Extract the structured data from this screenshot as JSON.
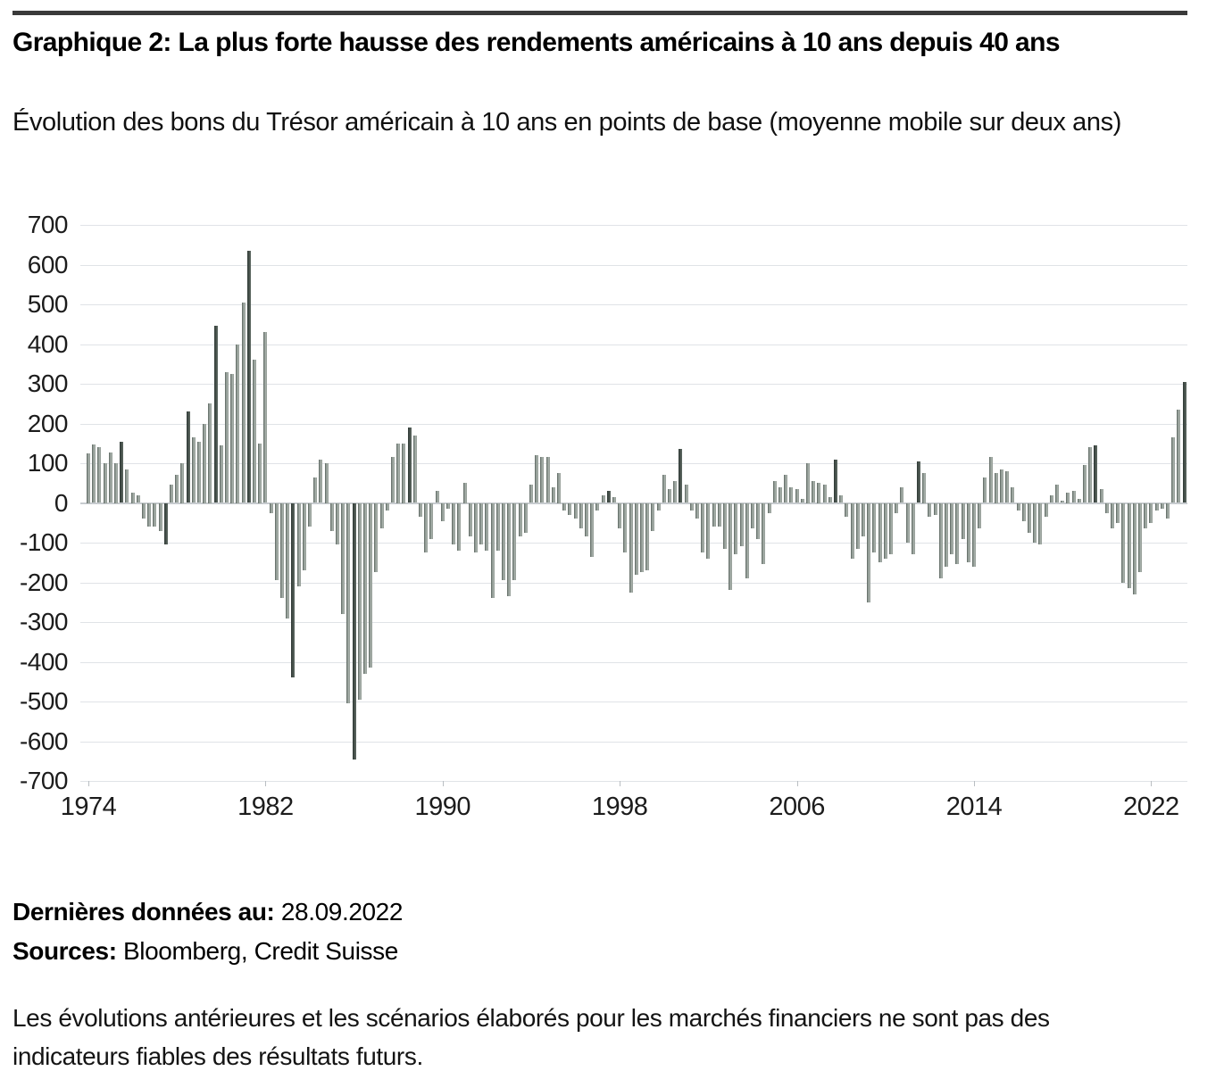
{
  "header": {
    "title": "Graphique 2: La plus forte hausse des rendements américains à 10 ans depuis 40 ans",
    "subtitle": "Évolution des bons du Trésor américain à 10 ans en points de base (moyenne mobile sur deux ans)"
  },
  "chart_data": {
    "type": "bar",
    "title": "Graphique 2: La plus forte hausse des rendements américains à 10 ans depuis 40 ans",
    "subtitle": "Évolution des bons du Trésor américain à 10 ans en points de base (moyenne mobile sur deux ans)",
    "unit": "points de base",
    "frequency": "quarterly",
    "x_start_year": 1974,
    "ylim": [
      -700,
      700
    ],
    "ytick_step": 100,
    "grid": true,
    "yticks": [
      700,
      600,
      500,
      400,
      300,
      200,
      100,
      0,
      -100,
      -200,
      -300,
      -400,
      -500,
      -600,
      -700
    ],
    "xticks": [
      1974,
      1982,
      1990,
      1998,
      2006,
      2014,
      2022
    ],
    "values": [
      125,
      148,
      140,
      100,
      127,
      100,
      155,
      85,
      25,
      20,
      -40,
      -60,
      -60,
      -70,
      -105,
      45,
      70,
      100,
      230,
      165,
      155,
      200,
      250,
      445,
      145,
      330,
      325,
      400,
      505,
      635,
      360,
      150,
      430,
      -25,
      -195,
      -240,
      -290,
      -440,
      -210,
      -170,
      -60,
      65,
      110,
      100,
      -70,
      -105,
      -280,
      -505,
      -645,
      -495,
      -430,
      -415,
      -175,
      -65,
      -20,
      115,
      150,
      150,
      190,
      170,
      -35,
      -125,
      -90,
      30,
      -45,
      -15,
      -105,
      -120,
      50,
      -85,
      -125,
      -105,
      -120,
      -240,
      -120,
      -195,
      -235,
      -195,
      -85,
      -75,
      45,
      120,
      115,
      115,
      40,
      75,
      -20,
      -30,
      -40,
      -65,
      -85,
      -135,
      -20,
      20,
      30,
      15,
      -65,
      -125,
      -225,
      -180,
      -175,
      -170,
      -70,
      -20,
      70,
      35,
      55,
      135,
      45,
      -20,
      -40,
      -125,
      -140,
      -60,
      -60,
      -115,
      -220,
      -130,
      -110,
      -190,
      -65,
      -90,
      -155,
      -25,
      55,
      40,
      70,
      40,
      35,
      10,
      100,
      55,
      50,
      45,
      15,
      110,
      20,
      -35,
      -140,
      -115,
      -85,
      -250,
      -125,
      -150,
      -140,
      -130,
      -25,
      40,
      -100,
      -130,
      105,
      75,
      -35,
      -30,
      -190,
      -160,
      -130,
      -155,
      -90,
      -150,
      -160,
      -65,
      65,
      115,
      75,
      85,
      80,
      40,
      -20,
      -45,
      -75,
      -100,
      -105,
      -35,
      20,
      45,
      5,
      25,
      30,
      10,
      95,
      140,
      145,
      35,
      -25,
      -65,
      -50,
      -200,
      -215,
      -230,
      -175,
      -65,
      -50,
      -20,
      -15,
      -40,
      165,
      235,
      305
    ],
    "dark_indices": [
      6,
      14,
      18,
      23,
      29,
      37,
      48,
      58,
      94,
      107,
      135,
      150,
      182,
      198
    ],
    "colors": {
      "bar_light_edge": "#5a655f",
      "bar_light_body": "#a7b0aa",
      "bar_light_end": "#949d97",
      "bar_dark_edge": "#2f3935",
      "bar_dark_body": "#4a554f",
      "bar_dark_end": "#5f6a64",
      "grid": "#e0e3e7",
      "zero_line": "#c7cbcf"
    }
  },
  "footer": {
    "last_data_label": "Dernières données au:",
    "last_data_value": "28.09.2022",
    "sources_label": "Sources:",
    "sources_value": "Bloomberg, Credit Suisse",
    "disclaimer": "Les évolutions antérieures et les scénarios élaborés pour les marchés financiers ne sont pas des indicateurs fiables des résultats futurs."
  }
}
